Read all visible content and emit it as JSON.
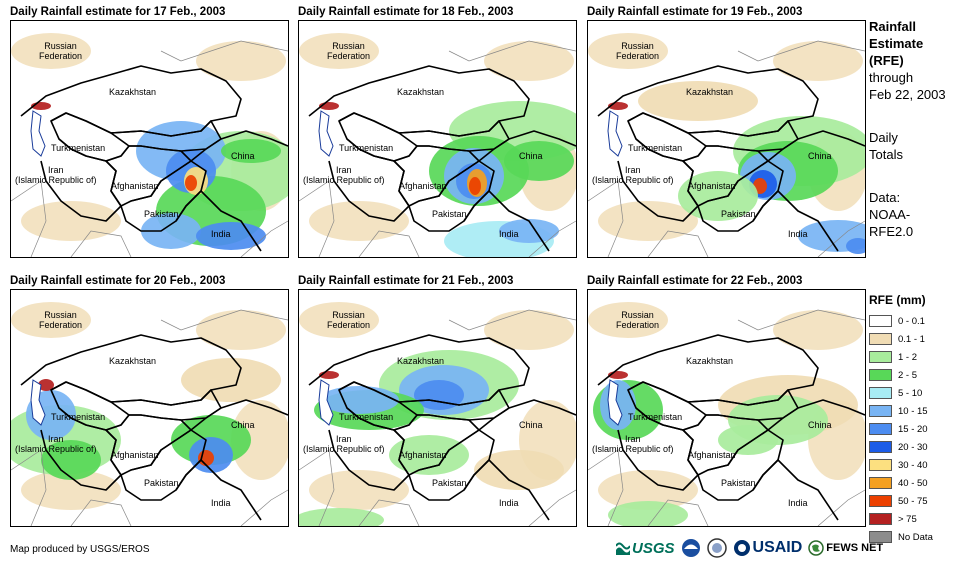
{
  "panels": [
    {
      "title": "Daily Rainfall estimate for 17 Feb., 2003"
    },
    {
      "title": "Daily Rainfall estimate for 18 Feb., 2003"
    },
    {
      "title": "Daily Rainfall estimate for 19 Feb., 2003"
    },
    {
      "title": "Daily Rainfall estimate for 20 Feb., 2003"
    },
    {
      "title": "Daily Rainfall estimate for 21 Feb., 2003"
    },
    {
      "title": "Daily Rainfall estimate for 22 Feb., 2003"
    }
  ],
  "countries": {
    "russia": "Russian\nFederation",
    "kazakhstan": "Kazakhstan",
    "turkmenistan": "Turkmenistan",
    "iran": "Iran\n(Islamic Republic of)",
    "afghanistan": "Afghanistan",
    "pakistan": "Pakistan",
    "china": "China",
    "india": "India"
  },
  "side": {
    "title1": "Rainfall",
    "title2": "Estimate",
    "title3": "(RFE)",
    "through": "through",
    "date": "Feb 22, 2003",
    "daily1": "Daily",
    "daily2": "Totals",
    "data1": "Data:",
    "data2": "NOAA-",
    "data3": "RFE2.0"
  },
  "legend": {
    "title": "RFE (mm)",
    "items": [
      {
        "label": "0 - 0.1",
        "color": "#ffffff"
      },
      {
        "label": "0.1 - 1",
        "color": "#f0dcb4"
      },
      {
        "label": "1 - 2",
        "color": "#a8ec9c"
      },
      {
        "label": "2 - 5",
        "color": "#58d858"
      },
      {
        "label": "5 - 10",
        "color": "#a8ecf4"
      },
      {
        "label": "10 - 15",
        "color": "#78b4f4"
      },
      {
        "label": "15 - 20",
        "color": "#4c8cf0"
      },
      {
        "label": "20 - 30",
        "color": "#1c5ce8"
      },
      {
        "label": "30 - 40",
        "color": "#fce080"
      },
      {
        "label": "40 - 50",
        "color": "#f4a020"
      },
      {
        "label": "50 - 75",
        "color": "#ec4000"
      },
      {
        "label": "> 75",
        "color": "#b42020"
      },
      {
        "label": "No Data",
        "color": "#8c8c8c"
      }
    ]
  },
  "credit": "Map produced by USGS/EROS",
  "logos": {
    "usgs": "USGS",
    "usaid": "USAID",
    "fewsnet": "FEWS NET"
  }
}
